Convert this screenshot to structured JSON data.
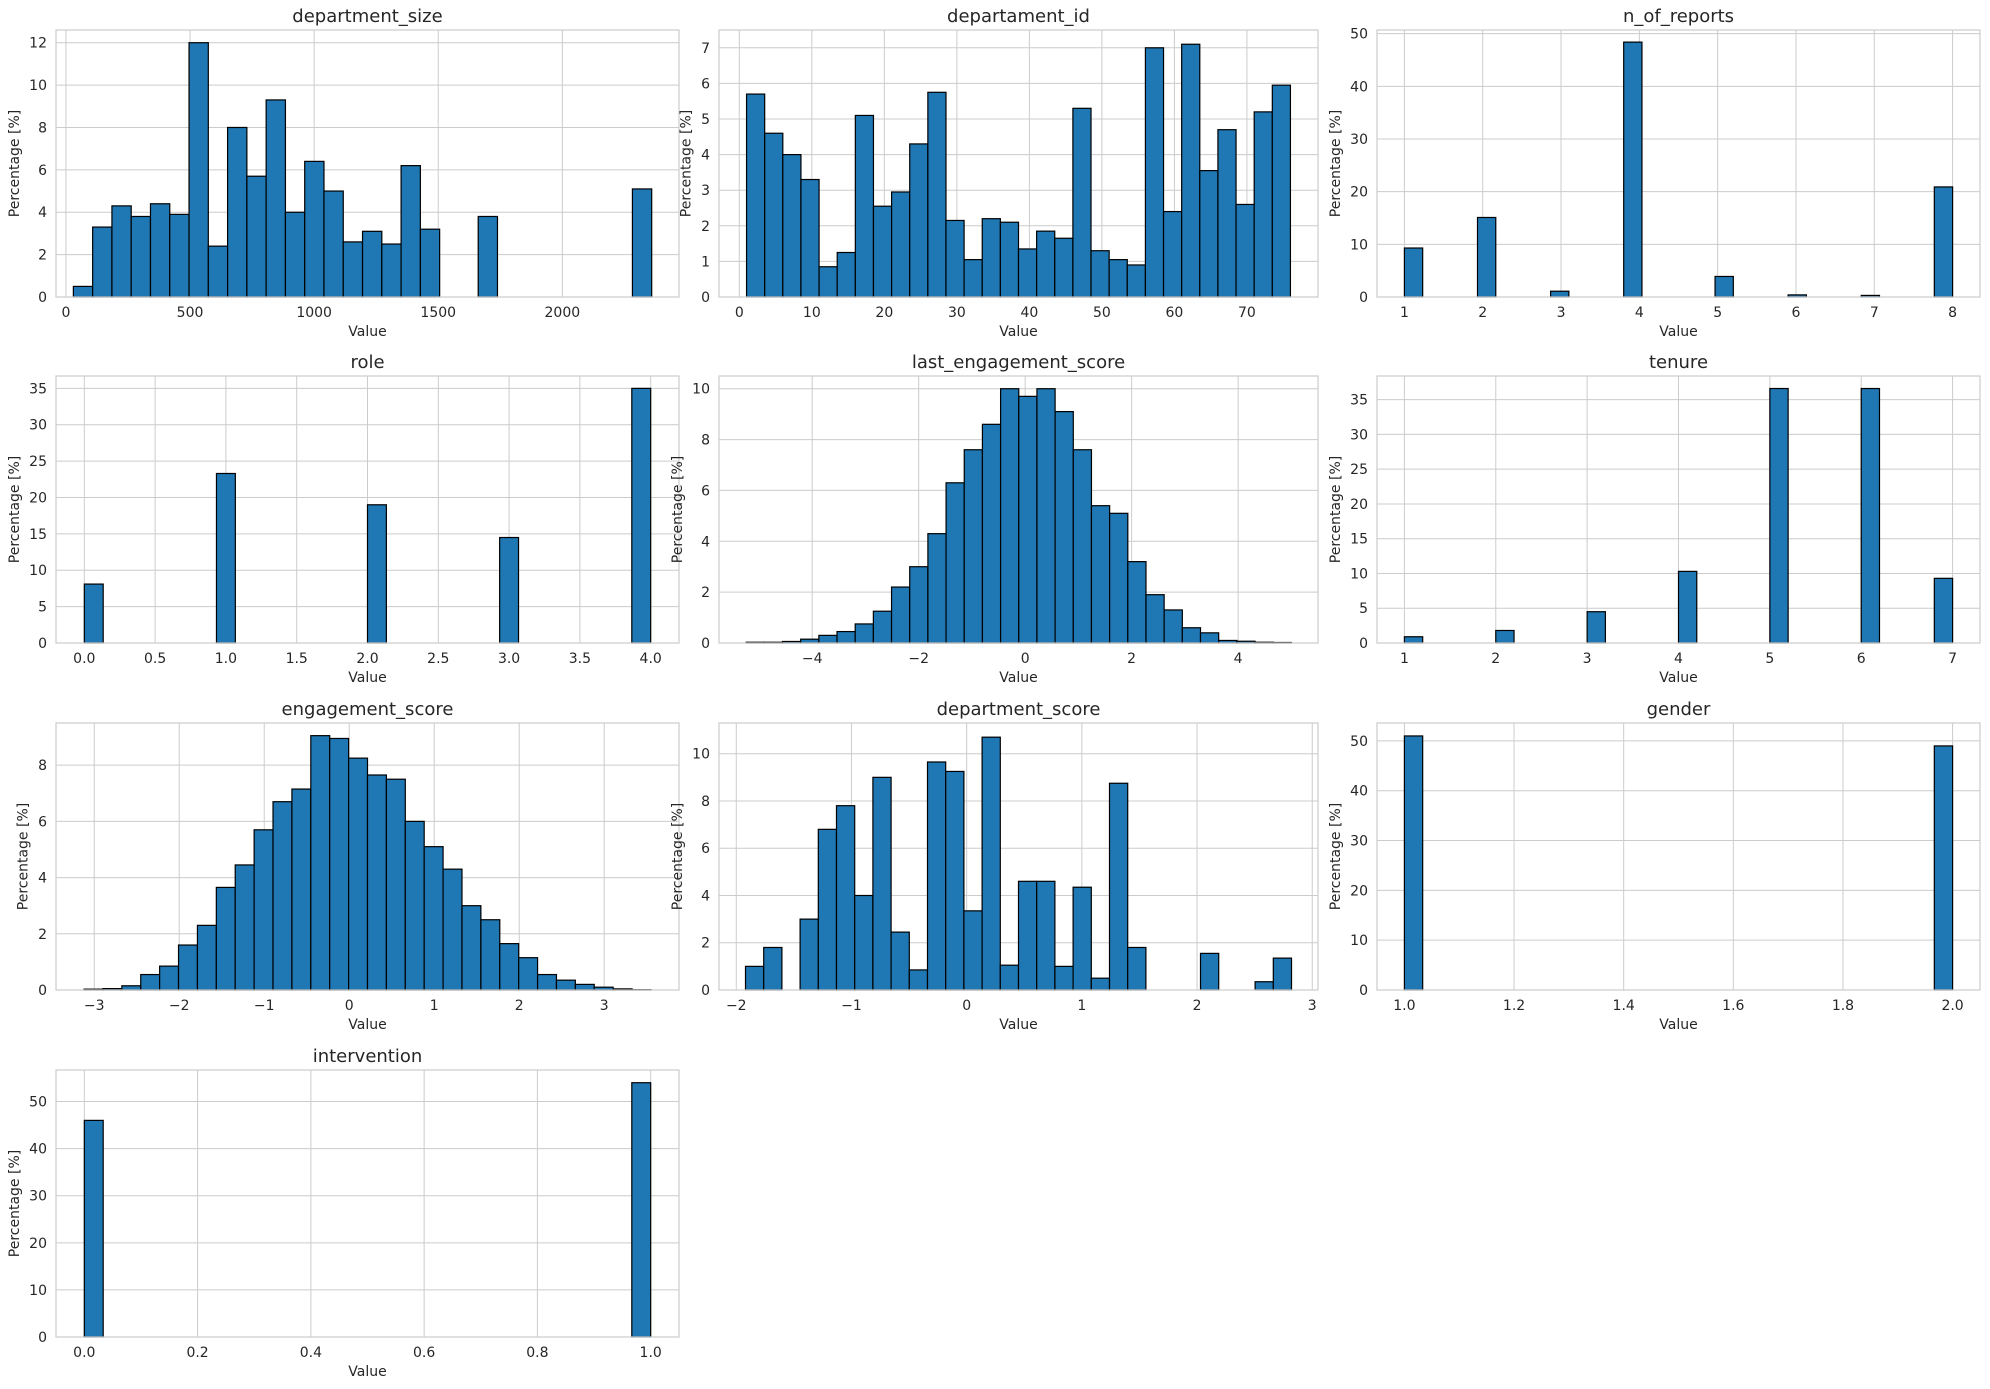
{
  "chart_data": [
    {
      "type": "bar",
      "title": "department_size",
      "xlabel": "Value",
      "ylabel": "Percentage [%]",
      "xlim": [
        -40,
        2470
      ],
      "ylim": [
        0,
        12.6
      ],
      "xticks": [
        0,
        500,
        1000,
        1500,
        2000
      ],
      "yticks": [
        0,
        2,
        4,
        6,
        8,
        10,
        12
      ],
      "bin_start": 30,
      "bin_end": 2360,
      "values": [
        0.5,
        3.3,
        4.3,
        3.8,
        4.4,
        3.9,
        12.0,
        2.4,
        8.0,
        5.7,
        9.3,
        4.0,
        6.4,
        5.0,
        2.6,
        3.1,
        2.5,
        6.2,
        3.2,
        0,
        0,
        3.8,
        0,
        0,
        0,
        0,
        0,
        0,
        0,
        5.1
      ]
    },
    {
      "type": "bar",
      "title": "departament_id",
      "xlabel": "Value",
      "ylabel": "Percentage [%]",
      "xlim": [
        -2.8,
        79.8
      ],
      "ylim": [
        0,
        7.5
      ],
      "xticks": [
        0,
        10,
        20,
        30,
        40,
        50,
        60,
        70
      ],
      "yticks": [
        0,
        1,
        2,
        3,
        4,
        5,
        6,
        7
      ],
      "bin_start": 1,
      "bin_end": 76,
      "values": [
        5.7,
        4.6,
        4.0,
        3.3,
        0.85,
        1.25,
        5.1,
        2.55,
        2.95,
        4.3,
        5.75,
        2.15,
        1.05,
        2.2,
        2.1,
        1.35,
        1.85,
        1.65,
        5.3,
        1.3,
        1.05,
        0.9,
        7.0,
        2.4,
        7.1,
        3.55,
        4.7,
        2.6,
        5.2,
        5.95
      ]
    },
    {
      "type": "bar",
      "title": "n_of_reports",
      "xlabel": "Value",
      "ylabel": "Percentage [%]",
      "xlim": [
        0.65,
        8.35
      ],
      "ylim": [
        0,
        50.7
      ],
      "xticks": [
        1,
        2,
        3,
        4,
        5,
        6,
        7,
        8
      ],
      "yticks": [
        0,
        10,
        20,
        30,
        40,
        50
      ],
      "bin_start": 1,
      "bin_end": 8,
      "values": [
        9.3,
        0,
        0,
        0,
        15.1,
        0,
        0,
        0,
        1.1,
        0,
        0,
        0,
        48.4,
        0,
        0,
        0,
        0,
        3.9,
        0,
        0,
        0,
        0.4,
        0,
        0,
        0,
        0.3,
        0,
        0,
        0,
        20.9
      ]
    },
    {
      "type": "bar",
      "title": "role",
      "xlabel": "Value",
      "ylabel": "Percentage [%]",
      "xlim": [
        -0.2,
        4.2
      ],
      "ylim": [
        0,
        36.7
      ],
      "xticks": [
        0.0,
        0.5,
        1.0,
        1.5,
        2.0,
        2.5,
        3.0,
        3.5,
        4.0
      ],
      "xtick_labels": [
        "0.0",
        "0.5",
        "1.0",
        "1.5",
        "2.0",
        "2.5",
        "3.0",
        "3.5",
        "4.0"
      ],
      "yticks": [
        0,
        5,
        10,
        15,
        20,
        25,
        30,
        35
      ],
      "bin_start": 0,
      "bin_end": 4,
      "values": [
        8.1,
        0,
        0,
        0,
        0,
        0,
        0,
        23.3,
        0,
        0,
        0,
        0,
        0,
        0,
        0,
        19.0,
        0,
        0,
        0,
        0,
        0,
        0,
        14.5,
        0,
        0,
        0,
        0,
        0,
        0,
        35.0
      ]
    },
    {
      "type": "bar",
      "title": "last_engagement_score",
      "xlabel": "Value",
      "ylabel": "Percentage [%]",
      "xlim": [
        -5.75,
        5.5
      ],
      "ylim": [
        0,
        10.5
      ],
      "xticks": [
        -4,
        -2,
        0,
        2,
        4
      ],
      "xtick_labels": [
        "−4",
        "−2",
        "0",
        "2",
        "4"
      ],
      "yticks": [
        0,
        2,
        4,
        6,
        8,
        10
      ],
      "bin_start": -5.24,
      "bin_end": 5.0,
      "values": [
        0.03,
        0.03,
        0.06,
        0.15,
        0.3,
        0.45,
        0.75,
        1.25,
        2.2,
        3.0,
        4.3,
        6.3,
        7.6,
        8.6,
        10.0,
        9.7,
        10.0,
        9.1,
        7.6,
        5.4,
        5.1,
        3.2,
        1.9,
        1.3,
        0.6,
        0.4,
        0.1,
        0.07,
        0.03,
        0.02
      ]
    },
    {
      "type": "bar",
      "title": "tenure",
      "xlabel": "Value",
      "ylabel": "Percentage [%]",
      "xlim": [
        0.7,
        7.3
      ],
      "ylim": [
        0,
        38.4
      ],
      "xticks": [
        1,
        2,
        3,
        4,
        5,
        6,
        7
      ],
      "yticks": [
        0,
        5,
        10,
        15,
        20,
        25,
        30,
        35
      ],
      "bin_start": 1,
      "bin_end": 7,
      "values": [
        0.9,
        0,
        0,
        0,
        0,
        1.8,
        0,
        0,
        0,
        0,
        4.5,
        0,
        0,
        0,
        0,
        10.3,
        0,
        0,
        0,
        0,
        36.6,
        0,
        0,
        0,
        0,
        36.6,
        0,
        0,
        0,
        9.3
      ]
    },
    {
      "type": "bar",
      "title": "engagement_score",
      "xlabel": "Value",
      "ylabel": "Percentage [%]",
      "xlim": [
        -3.45,
        3.88
      ],
      "ylim": [
        0,
        9.5
      ],
      "xticks": [
        -3,
        -2,
        -1,
        0,
        1,
        2,
        3
      ],
      "xtick_labels": [
        "−3",
        "−2",
        "−1",
        "0",
        "1",
        "2",
        "3"
      ],
      "yticks": [
        0,
        2,
        4,
        6,
        8
      ],
      "bin_start": -3.12,
      "bin_end": 3.55,
      "values": [
        0.03,
        0.05,
        0.15,
        0.55,
        0.85,
        1.6,
        2.3,
        3.65,
        4.45,
        5.7,
        6.7,
        7.15,
        9.05,
        8.95,
        8.25,
        7.65,
        7.5,
        6.0,
        5.1,
        4.3,
        3.0,
        2.5,
        1.65,
        1.15,
        0.55,
        0.35,
        0.2,
        0.1,
        0.04,
        0.01
      ]
    },
    {
      "type": "bar",
      "title": "department_score",
      "xlabel": "Value",
      "ylabel": "Percentage [%]",
      "xlim": [
        -2.15,
        3.05
      ],
      "ylim": [
        0,
        11.3
      ],
      "xticks": [
        -2,
        -1,
        0,
        1,
        2,
        3
      ],
      "xtick_labels": [
        "−2",
        "−1",
        "0",
        "1",
        "2",
        "3"
      ],
      "yticks": [
        0,
        2,
        4,
        6,
        8,
        10
      ],
      "bin_start": -1.92,
      "bin_end": 2.82,
      "values": [
        1.0,
        1.8,
        0,
        3.0,
        6.8,
        7.8,
        4.0,
        9.0,
        2.45,
        0.85,
        9.65,
        9.25,
        3.35,
        10.7,
        1.05,
        4.6,
        4.6,
        1.0,
        4.35,
        0.5,
        8.75,
        1.8,
        0,
        0,
        0,
        1.55,
        0,
        0,
        0.35,
        1.35
      ]
    },
    {
      "type": "bar",
      "title": "gender",
      "xlabel": "Value",
      "ylabel": "Percentage [%]",
      "xlim": [
        0.95,
        2.05
      ],
      "ylim": [
        0,
        53.6
      ],
      "xticks": [
        1.0,
        1.2,
        1.4,
        1.6,
        1.8,
        2.0
      ],
      "xtick_labels": [
        "1.0",
        "1.2",
        "1.4",
        "1.6",
        "1.8",
        "2.0"
      ],
      "yticks": [
        0,
        10,
        20,
        30,
        40,
        50
      ],
      "bin_start": 1,
      "bin_end": 2,
      "values": [
        51.0,
        0,
        0,
        0,
        0,
        0,
        0,
        0,
        0,
        0,
        0,
        0,
        0,
        0,
        0,
        0,
        0,
        0,
        0,
        0,
        0,
        0,
        0,
        0,
        0,
        0,
        0,
        0,
        0,
        49.0
      ]
    },
    {
      "type": "bar",
      "title": "intervention",
      "xlabel": "Value",
      "ylabel": "Percentage [%]",
      "xlim": [
        -0.05,
        1.05
      ],
      "ylim": [
        0,
        56.7
      ],
      "xticks": [
        0.0,
        0.2,
        0.4,
        0.6,
        0.8,
        1.0
      ],
      "xtick_labels": [
        "0.0",
        "0.2",
        "0.4",
        "0.6",
        "0.8",
        "1.0"
      ],
      "yticks": [
        0,
        10,
        20,
        30,
        40,
        50
      ],
      "bin_start": 0,
      "bin_end": 1,
      "values": [
        46.0,
        0,
        0,
        0,
        0,
        0,
        0,
        0,
        0,
        0,
        0,
        0,
        0,
        0,
        0,
        0,
        0,
        0,
        0,
        0,
        0,
        0,
        0,
        0,
        0,
        0,
        0,
        0,
        0,
        54.0
      ]
    }
  ]
}
